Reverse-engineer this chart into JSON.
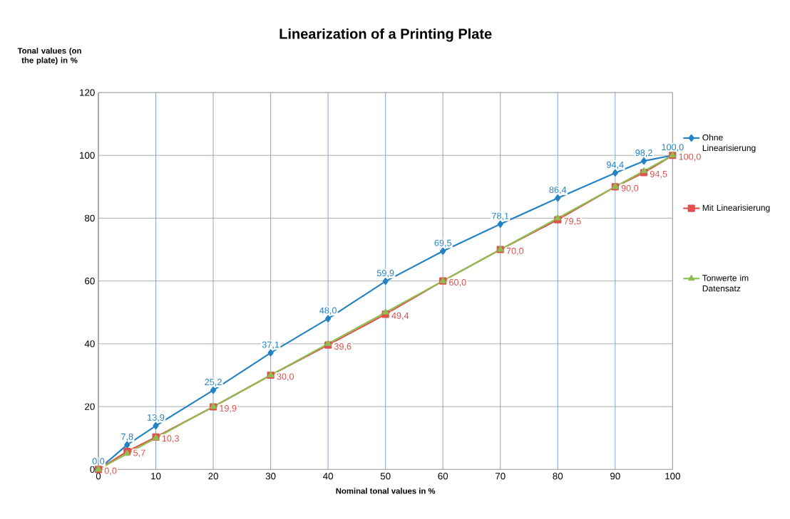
{
  "chart_data": {
    "type": "line",
    "title": "Linearization of a Printing Plate",
    "xlabel": "Nominal tonal values in %",
    "ylabel": "Tonal values (on the plate) in %",
    "x": [
      0,
      5,
      10,
      20,
      30,
      40,
      50,
      60,
      70,
      80,
      90,
      95,
      100
    ],
    "series": [
      {
        "name": "Ohne Linearisierung",
        "color": "#2382c4",
        "marker": "diamond",
        "values": [
          0,
          7.8,
          13.9,
          25.2,
          37.1,
          48.0,
          59.9,
          69.5,
          78.1,
          86.4,
          94.4,
          98.2,
          100.0
        ],
        "value_labels": [
          "0,0",
          "7,8",
          "13,9",
          "25,2",
          "37,1",
          "48,0",
          "59,9",
          "69,5",
          "78,1",
          "86,4",
          "94,4",
          "98,2",
          "100,0"
        ]
      },
      {
        "name": "Mit Linearisierung",
        "color": "#e0504c",
        "marker": "square",
        "values": [
          0,
          5.7,
          10.3,
          19.9,
          30.0,
          39.6,
          49.4,
          60.0,
          70.0,
          79.5,
          90.0,
          94.5,
          100.0
        ],
        "value_labels": [
          "0,0",
          "5,7",
          "10,3",
          "19,9",
          "30,0",
          "39,6",
          "49,4",
          "60,0",
          "70,0",
          "79,5",
          "90,0",
          "94,5",
          "100,0"
        ]
      },
      {
        "name": "Tonwerte im Datensatz",
        "color": "#8cbf4f",
        "marker": "triangle",
        "values": [
          0,
          5,
          10,
          20,
          30,
          40,
          50,
          60,
          70,
          80,
          90,
          95,
          100
        ]
      }
    ],
    "xlim": [
      0,
      100
    ],
    "xticks": [
      0,
      10,
      20,
      30,
      40,
      50,
      60,
      70,
      80,
      90,
      100
    ],
    "ylim": [
      0,
      120
    ],
    "yticks": [
      0,
      20,
      40,
      60,
      80,
      100,
      120
    ],
    "grid": true,
    "legend": "right"
  }
}
